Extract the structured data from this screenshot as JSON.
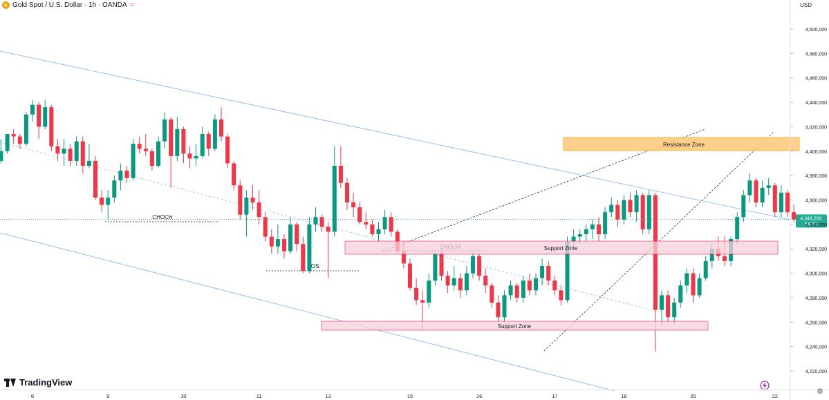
{
  "header": {
    "symbol": "Gold Spot / U.S. Dollar · 1h · OANDA",
    "currency": "USD"
  },
  "branding": {
    "logo_text": "TradingView"
  },
  "colors": {
    "up": "#089981",
    "down": "#f23645",
    "channel": "#5b9cf6",
    "resistance_fill": "#ffcc80",
    "resistance_border": "#e8a317",
    "support_fill": "#f8d0dc",
    "support_border": "#e91e63",
    "price_label": "#22ab94"
  },
  "chart_data": {
    "type": "candlestick",
    "instrument": "Gold Spot / U.S. Dollar",
    "timeframe": "1h",
    "y_axis": {
      "ticks": [
        4220000,
        4240000,
        4260000,
        4280000,
        4300000,
        4320000,
        4340000,
        4360000,
        4380000,
        4400000,
        4420000,
        4440000,
        4460000,
        4480000,
        4500000
      ],
      "tick_labels": [
        "4,220,000",
        "4,240,000",
        "4,260,000",
        "4,280,000",
        "4,300,000",
        "4,320,000",
        "4,340,000",
        "4,360,000",
        "4,380,000",
        "4,400,000",
        "4,420,000",
        "4,440,000",
        "4,460,000",
        "4,480,000",
        "4,500,000"
      ],
      "ylim": [
        4208000,
        4519000
      ]
    },
    "x_axis": {
      "tick_labels": [
        "8",
        "9",
        "10",
        "11",
        "13",
        "15",
        "16",
        "17",
        "18",
        "20",
        "22"
      ],
      "tick_index": [
        5,
        17,
        29,
        41,
        52,
        65,
        76,
        88,
        99,
        110,
        123
      ],
      "xlim": [
        0.5,
        130.5
      ]
    },
    "current_price": {
      "label": "4,344.200",
      "countdown": "54:38",
      "value": 4344200
    },
    "candles": [
      {
        "o": 4392,
        "h": 4410,
        "l": 4390,
        "c": 4400
      },
      {
        "o": 4400,
        "h": 4414,
        "l": 4398,
        "c": 4414
      },
      {
        "o": 4414,
        "h": 4418,
        "l": 4406,
        "c": 4412
      },
      {
        "o": 4412,
        "h": 4414,
        "l": 4402,
        "c": 4406
      },
      {
        "o": 4406,
        "h": 4432,
        "l": 4404,
        "c": 4430
      },
      {
        "o": 4430,
        "h": 4442,
        "l": 4424,
        "c": 4438
      },
      {
        "o": 4438,
        "h": 4440,
        "l": 4410,
        "c": 4420
      },
      {
        "o": 4420,
        "h": 4442,
        "l": 4418,
        "c": 4436
      },
      {
        "o": 4436,
        "h": 4438,
        "l": 4400,
        "c": 4404
      },
      {
        "o": 4404,
        "h": 4410,
        "l": 4392,
        "c": 4398
      },
      {
        "o": 4398,
        "h": 4410,
        "l": 4388,
        "c": 4402
      },
      {
        "o": 4402,
        "h": 4406,
        "l": 4388,
        "c": 4392
      },
      {
        "o": 4392,
        "h": 4412,
        "l": 4388,
        "c": 4408
      },
      {
        "o": 4408,
        "h": 4412,
        "l": 4382,
        "c": 4388
      },
      {
        "o": 4388,
        "h": 4406,
        "l": 4386,
        "c": 4392
      },
      {
        "o": 4392,
        "h": 4396,
        "l": 4360,
        "c": 4362
      },
      {
        "o": 4362,
        "h": 4368,
        "l": 4350,
        "c": 4356
      },
      {
        "o": 4356,
        "h": 4368,
        "l": 4344,
        "c": 4362
      },
      {
        "o": 4362,
        "h": 4380,
        "l": 4358,
        "c": 4376
      },
      {
        "o": 4376,
        "h": 4390,
        "l": 4368,
        "c": 4384
      },
      {
        "o": 4384,
        "h": 4388,
        "l": 4374,
        "c": 4378
      },
      {
        "o": 4378,
        "h": 4410,
        "l": 4376,
        "c": 4406
      },
      {
        "o": 4406,
        "h": 4412,
        "l": 4398,
        "c": 4402
      },
      {
        "o": 4402,
        "h": 4414,
        "l": 4396,
        "c": 4400
      },
      {
        "o": 4400,
        "h": 4402,
        "l": 4384,
        "c": 4388
      },
      {
        "o": 4388,
        "h": 4412,
        "l": 4386,
        "c": 4408
      },
      {
        "o": 4408,
        "h": 4432,
        "l": 4402,
        "c": 4426
      },
      {
        "o": 4426,
        "h": 4428,
        "l": 4370,
        "c": 4396
      },
      {
        "o": 4396,
        "h": 4428,
        "l": 4392,
        "c": 4418
      },
      {
        "o": 4418,
        "h": 4420,
        "l": 4390,
        "c": 4398
      },
      {
        "o": 4398,
        "h": 4404,
        "l": 4386,
        "c": 4394
      },
      {
        "o": 4394,
        "h": 4406,
        "l": 4388,
        "c": 4396
      },
      {
        "o": 4396,
        "h": 4420,
        "l": 4394,
        "c": 4414
      },
      {
        "o": 4414,
        "h": 4416,
        "l": 4396,
        "c": 4402
      },
      {
        "o": 4402,
        "h": 4430,
        "l": 4400,
        "c": 4426
      },
      {
        "o": 4426,
        "h": 4436,
        "l": 4408,
        "c": 4412
      },
      {
        "o": 4412,
        "h": 4414,
        "l": 4386,
        "c": 4390
      },
      {
        "o": 4390,
        "h": 4392,
        "l": 4368,
        "c": 4372
      },
      {
        "o": 4372,
        "h": 4376,
        "l": 4344,
        "c": 4348
      },
      {
        "o": 4348,
        "h": 4368,
        "l": 4330,
        "c": 4362
      },
      {
        "o": 4362,
        "h": 4372,
        "l": 4352,
        "c": 4358
      },
      {
        "o": 4358,
        "h": 4368,
        "l": 4340,
        "c": 4346
      },
      {
        "o": 4346,
        "h": 4350,
        "l": 4326,
        "c": 4330
      },
      {
        "o": 4330,
        "h": 4336,
        "l": 4316,
        "c": 4322
      },
      {
        "o": 4322,
        "h": 4340,
        "l": 4316,
        "c": 4328
      },
      {
        "o": 4328,
        "h": 4332,
        "l": 4312,
        "c": 4318
      },
      {
        "o": 4318,
        "h": 4346,
        "l": 4316,
        "c": 4340
      },
      {
        "o": 4340,
        "h": 4342,
        "l": 4318,
        "c": 4324
      },
      {
        "o": 4324,
        "h": 4330,
        "l": 4300,
        "c": 4302
      },
      {
        "o": 4302,
        "h": 4346,
        "l": 4300,
        "c": 4340
      },
      {
        "o": 4340,
        "h": 4354,
        "l": 4334,
        "c": 4346
      },
      {
        "o": 4346,
        "h": 4348,
        "l": 4334,
        "c": 4338
      },
      {
        "o": 4338,
        "h": 4342,
        "l": 4296,
        "c": 4334
      },
      {
        "o": 4334,
        "h": 4404,
        "l": 4330,
        "c": 4388
      },
      {
        "o": 4388,
        "h": 4404,
        "l": 4370,
        "c": 4374
      },
      {
        "o": 4374,
        "h": 4378,
        "l": 4352,
        "c": 4358
      },
      {
        "o": 4358,
        "h": 4366,
        "l": 4346,
        "c": 4354
      },
      {
        "o": 4354,
        "h": 4358,
        "l": 4340,
        "c": 4342
      },
      {
        "o": 4342,
        "h": 4350,
        "l": 4336,
        "c": 4340
      },
      {
        "o": 4340,
        "h": 4344,
        "l": 4330,
        "c": 4332
      },
      {
        "o": 4332,
        "h": 4342,
        "l": 4326,
        "c": 4336
      },
      {
        "o": 4336,
        "h": 4352,
        "l": 4332,
        "c": 4346
      },
      {
        "o": 4346,
        "h": 4350,
        "l": 4330,
        "c": 4334
      },
      {
        "o": 4334,
        "h": 4336,
        "l": 4316,
        "c": 4318
      },
      {
        "o": 4318,
        "h": 4326,
        "l": 4304,
        "c": 4308
      },
      {
        "o": 4308,
        "h": 4312,
        "l": 4286,
        "c": 4288
      },
      {
        "o": 4288,
        "h": 4296,
        "l": 4274,
        "c": 4278
      },
      {
        "o": 4278,
        "h": 4286,
        "l": 4254,
        "c": 4276
      },
      {
        "o": 4276,
        "h": 4300,
        "l": 4272,
        "c": 4294
      },
      {
        "o": 4294,
        "h": 4318,
        "l": 4290,
        "c": 4316
      },
      {
        "o": 4316,
        "h": 4320,
        "l": 4294,
        "c": 4298
      },
      {
        "o": 4298,
        "h": 4302,
        "l": 4284,
        "c": 4290
      },
      {
        "o": 4290,
        "h": 4306,
        "l": 4286,
        "c": 4296
      },
      {
        "o": 4296,
        "h": 4300,
        "l": 4280,
        "c": 4286
      },
      {
        "o": 4286,
        "h": 4306,
        "l": 4282,
        "c": 4300
      },
      {
        "o": 4300,
        "h": 4318,
        "l": 4296,
        "c": 4314
      },
      {
        "o": 4314,
        "h": 4316,
        "l": 4294,
        "c": 4298
      },
      {
        "o": 4298,
        "h": 4304,
        "l": 4284,
        "c": 4290
      },
      {
        "o": 4290,
        "h": 4292,
        "l": 4272,
        "c": 4276
      },
      {
        "o": 4276,
        "h": 4282,
        "l": 4260,
        "c": 4264
      },
      {
        "o": 4264,
        "h": 4286,
        "l": 4260,
        "c": 4282
      },
      {
        "o": 4282,
        "h": 4294,
        "l": 4278,
        "c": 4290
      },
      {
        "o": 4290,
        "h": 4292,
        "l": 4276,
        "c": 4280
      },
      {
        "o": 4280,
        "h": 4298,
        "l": 4276,
        "c": 4294
      },
      {
        "o": 4294,
        "h": 4300,
        "l": 4282,
        "c": 4286
      },
      {
        "o": 4286,
        "h": 4300,
        "l": 4282,
        "c": 4296
      },
      {
        "o": 4296,
        "h": 4312,
        "l": 4290,
        "c": 4306
      },
      {
        "o": 4306,
        "h": 4310,
        "l": 4290,
        "c": 4294
      },
      {
        "o": 4294,
        "h": 4298,
        "l": 4282,
        "c": 4286
      },
      {
        "o": 4286,
        "h": 4290,
        "l": 4274,
        "c": 4278
      },
      {
        "o": 4278,
        "h": 4330,
        "l": 4276,
        "c": 4326
      },
      {
        "o": 4326,
        "h": 4336,
        "l": 4320,
        "c": 4330
      },
      {
        "o": 4330,
        "h": 4336,
        "l": 4324,
        "c": 4332
      },
      {
        "o": 4332,
        "h": 4340,
        "l": 4326,
        "c": 4336
      },
      {
        "o": 4336,
        "h": 4344,
        "l": 4328,
        "c": 4340
      },
      {
        "o": 4340,
        "h": 4346,
        "l": 4326,
        "c": 4332
      },
      {
        "o": 4332,
        "h": 4354,
        "l": 4328,
        "c": 4350
      },
      {
        "o": 4350,
        "h": 4362,
        "l": 4346,
        "c": 4356
      },
      {
        "o": 4356,
        "h": 4360,
        "l": 4338,
        "c": 4344
      },
      {
        "o": 4344,
        "h": 4364,
        "l": 4340,
        "c": 4360
      },
      {
        "o": 4360,
        "h": 4366,
        "l": 4346,
        "c": 4350
      },
      {
        "o": 4350,
        "h": 4368,
        "l": 4342,
        "c": 4364
      },
      {
        "o": 4364,
        "h": 4366,
        "l": 4332,
        "c": 4336
      },
      {
        "o": 4336,
        "h": 4368,
        "l": 4332,
        "c": 4364
      },
      {
        "o": 4364,
        "h": 4366,
        "l": 4236,
        "c": 4270
      },
      {
        "o": 4270,
        "h": 4286,
        "l": 4256,
        "c": 4282
      },
      {
        "o": 4282,
        "h": 4286,
        "l": 4260,
        "c": 4264
      },
      {
        "o": 4264,
        "h": 4280,
        "l": 4258,
        "c": 4276
      },
      {
        "o": 4276,
        "h": 4294,
        "l": 4272,
        "c": 4290
      },
      {
        "o": 4290,
        "h": 4304,
        "l": 4284,
        "c": 4300
      },
      {
        "o": 4300,
        "h": 4304,
        "l": 4276,
        "c": 4282
      },
      {
        "o": 4282,
        "h": 4300,
        "l": 4280,
        "c": 4296
      },
      {
        "o": 4296,
        "h": 4314,
        "l": 4294,
        "c": 4310
      },
      {
        "o": 4310,
        "h": 4324,
        "l": 4304,
        "c": 4320
      },
      {
        "o": 4320,
        "h": 4330,
        "l": 4310,
        "c": 4314
      },
      {
        "o": 4314,
        "h": 4330,
        "l": 4306,
        "c": 4310
      },
      {
        "o": 4310,
        "h": 4330,
        "l": 4306,
        "c": 4328
      },
      {
        "o": 4328,
        "h": 4350,
        "l": 4324,
        "c": 4346
      },
      {
        "o": 4346,
        "h": 4368,
        "l": 4342,
        "c": 4364
      },
      {
        "o": 4364,
        "h": 4382,
        "l": 4358,
        "c": 4376
      },
      {
        "o": 4376,
        "h": 4378,
        "l": 4354,
        "c": 4358
      },
      {
        "o": 4358,
        "h": 4376,
        "l": 4354,
        "c": 4370
      },
      {
        "o": 4370,
        "h": 4378,
        "l": 4364,
        "c": 4372
      },
      {
        "o": 4372,
        "h": 4374,
        "l": 4346,
        "c": 4350
      },
      {
        "o": 4350,
        "h": 4372,
        "l": 4346,
        "c": 4366
      },
      {
        "o": 4366,
        "h": 4368,
        "l": 4346,
        "c": 4350
      },
      {
        "o": 4350,
        "h": 4356,
        "l": 4342,
        "c": 4344
      }
    ]
  },
  "annotations": {
    "choch_left": "CHOCH",
    "bos": "BOS",
    "choch_mid": "CHOCH",
    "support_zone_upper": "Support Zone",
    "support_zone_lower": "Support Zone",
    "resistance_zone": "Resistance Zone"
  }
}
